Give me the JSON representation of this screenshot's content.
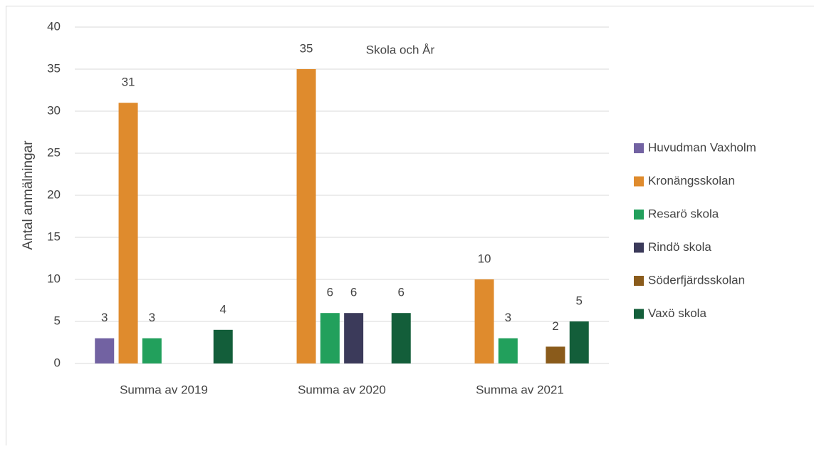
{
  "chart_data": {
    "type": "bar",
    "title": "Skola och År",
    "ylabel": "Antal anmälningar",
    "categories": [
      "Summa av 2019",
      "Summa av 2020",
      "Summa av 2021"
    ],
    "series": [
      {
        "name": "Huvudman Vaxholm",
        "color": "#7262a2",
        "values": [
          3,
          null,
          null
        ]
      },
      {
        "name": "Kronängsskolan",
        "color": "#df8b2d",
        "values": [
          31,
          35,
          10
        ]
      },
      {
        "name": "Resarö skola",
        "color": "#22a05c",
        "values": [
          3,
          6,
          3
        ]
      },
      {
        "name": "Rindö skola",
        "color": "#3b3a5a",
        "values": [
          null,
          6,
          null
        ]
      },
      {
        "name": "Söderfjärdsskolan",
        "color": "#8a5b1b",
        "values": [
          null,
          null,
          2
        ]
      },
      {
        "name": "Vaxö skola",
        "color": "#135e3a",
        "values": [
          4,
          6,
          5
        ]
      }
    ],
    "ylim": [
      0,
      40
    ],
    "yticks": [
      0,
      5,
      10,
      15,
      20,
      25,
      30,
      35,
      40
    ],
    "grid": true,
    "legend": "right"
  }
}
